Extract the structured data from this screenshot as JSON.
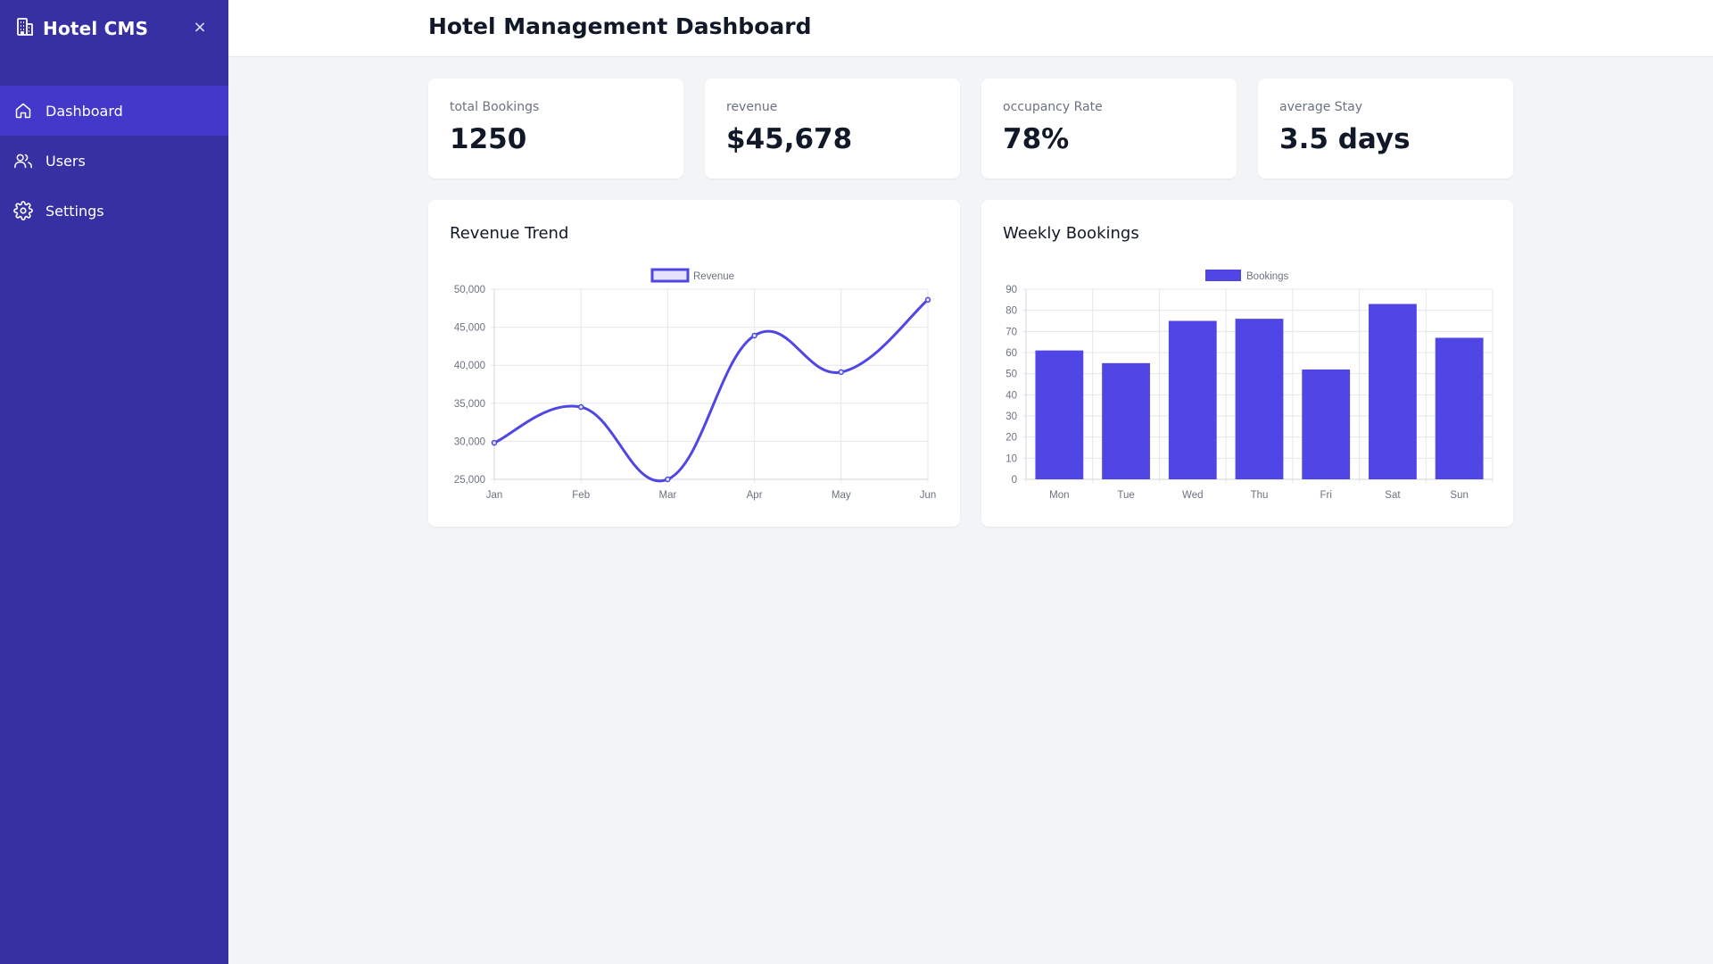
{
  "sidebar": {
    "brand": "Hotel CMS",
    "close_label": "×",
    "items": [
      {
        "label": "Dashboard",
        "icon": "home-icon",
        "active": true
      },
      {
        "label": "Users",
        "icon": "users-icon",
        "active": false
      },
      {
        "label": "Settings",
        "icon": "gear-icon",
        "active": false
      }
    ]
  },
  "header": {
    "title": "Hotel Management Dashboard"
  },
  "stats": [
    {
      "label": "total Bookings",
      "value": "1250"
    },
    {
      "label": "revenue",
      "value": "$45,678"
    },
    {
      "label": "occupancy Rate",
      "value": "78%"
    },
    {
      "label": "average Stay",
      "value": "3.5 days"
    }
  ],
  "colors": {
    "sidebar": "#3730a3",
    "active_item": "#4338ca",
    "accent": "#4f46e5"
  },
  "chart_data": [
    {
      "type": "line",
      "title": "Revenue Trend",
      "categories": [
        "Jan",
        "Feb",
        "Mar",
        "Apr",
        "May",
        "Jun"
      ],
      "series": [
        {
          "name": "Revenue",
          "values": [
            29800,
            34500,
            25000,
            43900,
            39100,
            48600
          ]
        }
      ],
      "ylim": [
        25000,
        50000
      ],
      "yticks": [
        "25,000",
        "30,000",
        "35,000",
        "40,000",
        "45,000",
        "50,000"
      ],
      "ytick_values": [
        25000,
        30000,
        35000,
        40000,
        45000,
        50000
      ],
      "grid": true,
      "legend": "top-center"
    },
    {
      "type": "bar",
      "title": "Weekly Bookings",
      "categories": [
        "Mon",
        "Tue",
        "Wed",
        "Thu",
        "Fri",
        "Sat",
        "Sun"
      ],
      "series": [
        {
          "name": "Bookings",
          "values": [
            61,
            55,
            75,
            76,
            52,
            83,
            67
          ]
        }
      ],
      "ylim": [
        0,
        90
      ],
      "yticks": [
        "0",
        "10",
        "20",
        "30",
        "40",
        "50",
        "60",
        "70",
        "80",
        "90"
      ],
      "ytick_values": [
        0,
        10,
        20,
        30,
        40,
        50,
        60,
        70,
        80,
        90
      ],
      "grid": true,
      "legend": "top-center"
    }
  ]
}
